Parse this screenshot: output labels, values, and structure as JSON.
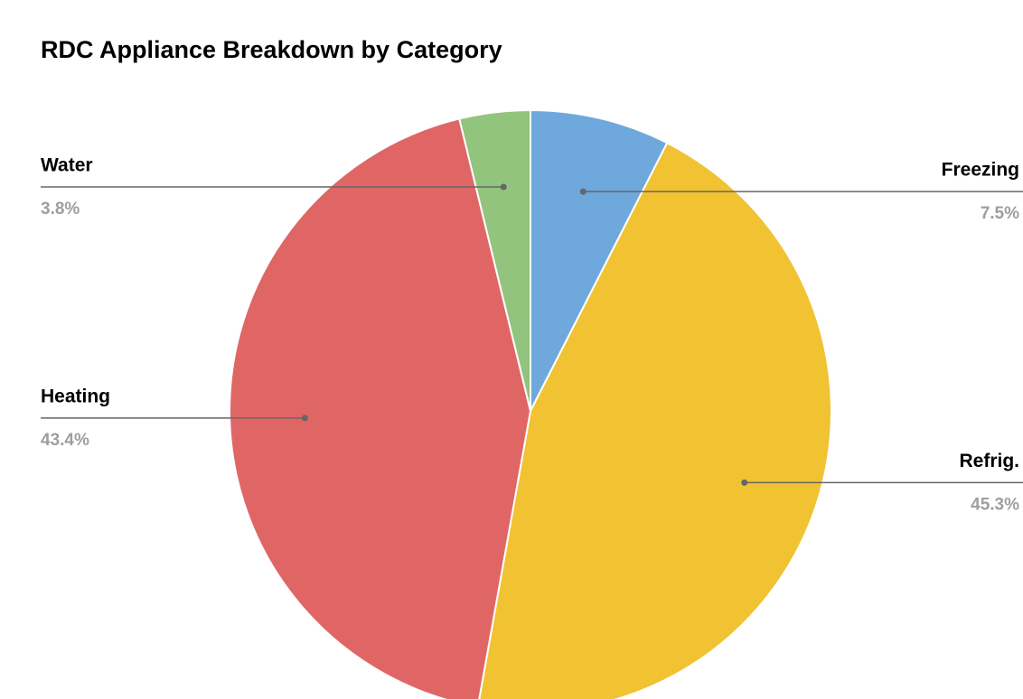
{
  "chart_data": {
    "type": "pie",
    "title": "RDC Appliance Breakdown by Category",
    "categories": [
      "Freezing",
      "Refrig.",
      "Heating",
      "Water"
    ],
    "values": [
      7.5,
      45.3,
      43.4,
      3.8
    ],
    "value_labels": [
      "7.5%",
      "45.3%",
      "43.4%",
      "3.8%"
    ],
    "colors": [
      "#6fa8dc",
      "#f1c232",
      "#e06666",
      "#93c47d"
    ]
  }
}
